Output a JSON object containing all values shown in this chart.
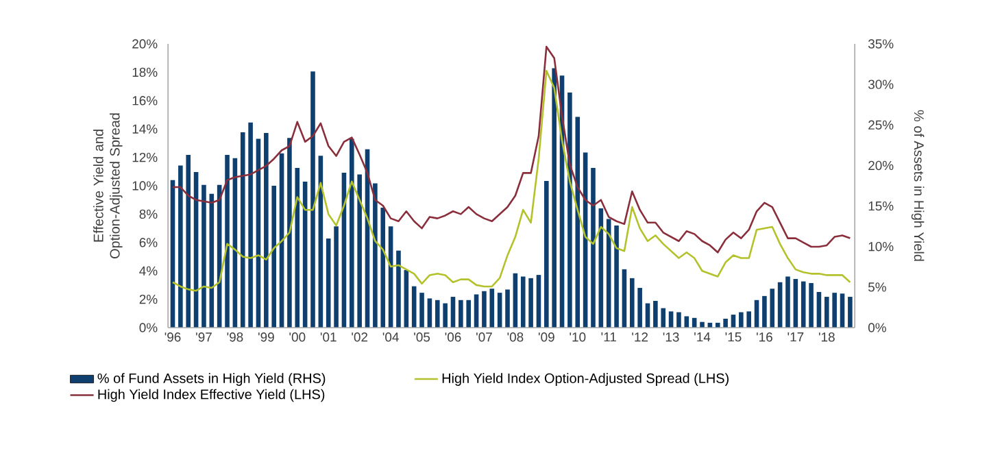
{
  "chart_data": {
    "type": "bar",
    "ylabel": "Effective Yield and Option-Adjusted Spread",
    "y2label": "% of Assets in High Yield",
    "categories": [
      "'96",
      null,
      null,
      null,
      "'97",
      null,
      null,
      null,
      "'98",
      null,
      null,
      null,
      "'99",
      null,
      null,
      null,
      "'00",
      null,
      null,
      null,
      "'01",
      null,
      null,
      null,
      "'02",
      null,
      null,
      null,
      "'04",
      null,
      null,
      null,
      "'05",
      null,
      null,
      null,
      "'06",
      null,
      null,
      null,
      "'07",
      null,
      null,
      null,
      "'08",
      null,
      null,
      null,
      "'09",
      null,
      null,
      null,
      "'10",
      null,
      null,
      null,
      "'11",
      null,
      null,
      null,
      "'12",
      null,
      null,
      null,
      "'13",
      null,
      null,
      null,
      "'14",
      null,
      null,
      null,
      "'15",
      null,
      null,
      null,
      "'16",
      null,
      null,
      null,
      "'17",
      null,
      null,
      null,
      "'18",
      null,
      null,
      null
    ],
    "series": [
      {
        "name": "% of Fund Assets in High Yield (RHS)",
        "axis": "y2",
        "color": "#0f3f6e",
        "values": [
          18.2,
          20.0,
          21.3,
          19.2,
          17.6,
          16.5,
          17.6,
          21.3,
          20.9,
          24.1,
          25.3,
          23.3,
          24.0,
          17.5,
          21.5,
          23.4,
          19.7,
          18.0,
          31.6,
          21.2,
          11.0,
          12.5,
          19.1,
          23.3,
          18.9,
          22.0,
          17.8,
          14.8,
          12.5,
          9.5,
          7.1,
          5.1,
          4.3,
          3.6,
          3.4,
          3.0,
          3.8,
          3.4,
          3.4,
          4.1,
          4.5,
          4.8,
          4.3,
          4.7,
          6.7,
          6.3,
          6.1,
          6.5,
          18.1,
          32.0,
          31.1,
          29.0,
          26.0,
          21.6,
          19.7,
          14.7,
          13.4,
          12.6,
          7.2,
          6.1,
          4.9,
          3.0,
          3.3,
          2.4,
          2.0,
          1.9,
          1.4,
          1.2,
          0.7,
          0.6,
          0.6,
          1.1,
          1.6,
          1.9,
          2.0,
          3.4,
          3.9,
          4.8,
          5.6,
          6.3,
          6.0,
          5.7,
          5.5,
          4.4,
          3.8,
          4.3,
          4.2,
          3.8
        ]
      },
      {
        "name": "High Yield Index Option-Adjusted Spread (LHS)",
        "type": "line",
        "color": "#b3c22b",
        "values": [
          3.2,
          2.9,
          2.7,
          2.6,
          2.9,
          2.8,
          3.2,
          5.9,
          5.5,
          5.0,
          4.9,
          5.1,
          4.8,
          5.6,
          6.1,
          6.7,
          9.2,
          8.3,
          8.3,
          10.2,
          8.0,
          7.2,
          8.6,
          10.3,
          9.0,
          7.7,
          6.1,
          5.5,
          4.3,
          4.4,
          4.1,
          3.8,
          3.1,
          3.7,
          3.8,
          3.7,
          3.2,
          3.4,
          3.4,
          3.0,
          2.9,
          2.9,
          3.5,
          5.1,
          6.4,
          8.3,
          7.4,
          11.9,
          18.1,
          16.9,
          13.2,
          10.3,
          8.3,
          6.4,
          5.9,
          7.1,
          6.6,
          5.6,
          5.4,
          8.5,
          7.0,
          6.1,
          6.5,
          5.9,
          5.4,
          4.9,
          5.3,
          4.9,
          4.0,
          3.8,
          3.6,
          4.6,
          5.1,
          4.9,
          4.9,
          6.9,
          7.0,
          7.1,
          5.9,
          4.9,
          4.1,
          3.9,
          3.8,
          3.8,
          3.7,
          3.7,
          3.7,
          3.2
        ]
      },
      {
        "name": "High Yield Index Effective Yield (LHS)",
        "type": "line",
        "color": "#8a2e3b",
        "values": [
          9.9,
          9.9,
          9.3,
          9.0,
          8.9,
          8.8,
          9.0,
          10.4,
          10.6,
          10.7,
          10.8,
          11.1,
          11.4,
          11.9,
          12.5,
          12.8,
          14.5,
          13.1,
          13.5,
          14.4,
          12.8,
          12.1,
          13.1,
          13.4,
          12.2,
          10.9,
          9.0,
          8.6,
          7.7,
          7.5,
          8.2,
          7.5,
          7.0,
          7.8,
          7.7,
          7.9,
          8.2,
          8.0,
          8.5,
          8.0,
          7.7,
          7.5,
          8.0,
          8.5,
          9.3,
          10.9,
          10.9,
          13.5,
          19.8,
          19.0,
          14.9,
          11.5,
          9.9,
          9.0,
          8.6,
          9.0,
          7.8,
          7.5,
          7.3,
          9.6,
          8.3,
          7.4,
          7.4,
          6.7,
          6.4,
          6.1,
          6.8,
          6.6,
          6.1,
          5.8,
          5.3,
          6.2,
          6.7,
          6.3,
          6.9,
          8.2,
          8.8,
          8.5,
          7.4,
          6.3,
          6.3,
          6.0,
          5.7,
          5.7,
          5.8,
          6.4,
          6.5,
          6.3
        ]
      }
    ],
    "ylim": [
      0,
      20
    ],
    "yticks": [
      {
        "value": 0,
        "label": "0%"
      },
      {
        "value": 2,
        "label": "2%"
      },
      {
        "value": 4,
        "label": "4%"
      },
      {
        "value": 6,
        "label": "6%"
      },
      {
        "value": 8,
        "label": "8%"
      },
      {
        "value": 10,
        "label": "10%"
      },
      {
        "value": 12,
        "label": "12%"
      },
      {
        "value": 14,
        "label": "14%"
      },
      {
        "value": 16,
        "label": "16%"
      },
      {
        "value": 18,
        "label": "18%"
      },
      {
        "value": 20,
        "label": "20%"
      }
    ],
    "y2lim": [
      0,
      35
    ],
    "y2ticks": [
      {
        "value": 0,
        "label": "0%"
      },
      {
        "value": 5,
        "label": "5%"
      },
      {
        "value": 10,
        "label": "10%"
      },
      {
        "value": 15,
        "label": "15%"
      },
      {
        "value": 20,
        "label": "20%"
      },
      {
        "value": 25,
        "label": "25%"
      },
      {
        "value": 30,
        "label": "30%"
      },
      {
        "value": 35,
        "label": "35%"
      }
    ],
    "legend": "bottom"
  }
}
